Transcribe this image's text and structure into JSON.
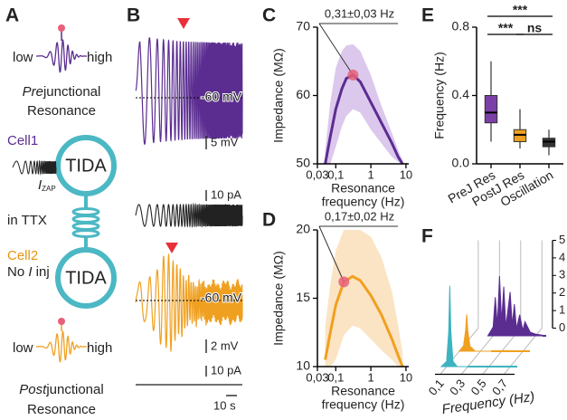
{
  "panel_labels": [
    "A",
    "B",
    "C",
    "D",
    "E",
    "F"
  ],
  "panel_a": {
    "pre_low": "low",
    "pre_high": "high",
    "pre_title": [
      "Pre",
      "junctional"
    ],
    "pre_title2": "Resonance",
    "cell1": "Cell1",
    "tida1": "TIDA",
    "i_zap": [
      "I",
      "ZAP"
    ],
    "ttx": "in TTX",
    "cell2": "Cell2",
    "no_inj": [
      "No ",
      "I",
      " inj"
    ],
    "tida2": "TIDA",
    "post_low": "low",
    "post_high": "high",
    "post_title": [
      "Post",
      "junctional"
    ],
    "post_title2": "Resonance"
  },
  "panel_b": {
    "rest1": "-60 mV",
    "scale_v1": "5 mV",
    "scale_i1": "10 pA",
    "rest2": "-60 mV",
    "scale_v2": "2 mV",
    "scale_i2": "10 pA",
    "scale_t": "10 s"
  },
  "chart_data": [
    {
      "type": "line",
      "ylabel": "Impedance (MΩ)",
      "xlabel": [
        "Resonance",
        "frequency (Hz)"
      ],
      "xscale": "log",
      "xlim": [
        0.03,
        12
      ],
      "ylim": [
        50,
        70
      ],
      "xticks": [
        {
          "value": 0.03,
          "label": "0,03"
        },
        {
          "value": 0.1,
          "label": "0,1"
        },
        1,
        10
      ],
      "yticks": [
        50,
        60,
        70
      ],
      "x": [
        0.05,
        0.07,
        0.1,
        0.15,
        0.2,
        0.31,
        0.5,
        1,
        2,
        4,
        6,
        8
      ],
      "values": [
        50,
        54,
        58,
        61,
        62.5,
        63,
        62,
        59,
        56,
        53,
        51,
        50
      ],
      "upper": [
        52,
        59,
        64,
        66.5,
        67.3,
        67.5,
        66.5,
        63,
        58.5,
        54.5,
        52,
        50.5
      ],
      "lower": [
        50,
        50,
        52.5,
        55.5,
        57,
        58,
        57.5,
        55,
        53,
        51,
        50.3,
        50
      ],
      "color": "#5b2d91",
      "band_color": "#dcc8ec",
      "annotation": "0,31±0,03 Hz",
      "peak": {
        "x": 0.31,
        "y": 63
      },
      "peak_color": "#e8607a"
    },
    {
      "type": "line",
      "ylabel": "Impedance (MΩ)",
      "xlabel": [
        "Resonance",
        "frequency (Hz)"
      ],
      "xscale": "log",
      "xlim": [
        0.03,
        12
      ],
      "ylim": [
        10,
        20
      ],
      "xticks": [
        {
          "value": 0.03,
          "label": "0,03"
        },
        {
          "value": 0.1,
          "label": "0,1"
        },
        1,
        10
      ],
      "yticks": [
        10,
        15,
        20
      ],
      "x": [
        0.05,
        0.07,
        0.1,
        0.17,
        0.3,
        0.5,
        1,
        2,
        4,
        6,
        8
      ],
      "values": [
        10.5,
        12.5,
        14.5,
        16.2,
        16.6,
        16.3,
        15.2,
        13.8,
        12,
        10.8,
        10
      ],
      "upper": [
        13,
        16,
        18.5,
        20,
        20,
        20,
        19.5,
        18,
        15.5,
        13,
        11
      ],
      "lower": [
        10,
        10,
        10.5,
        12.3,
        13,
        12.8,
        12,
        11.2,
        10.5,
        10,
        10
      ],
      "color": "#f0a020",
      "band_color": "#fbe4c4",
      "annotation": "0,17±0,02 Hz",
      "peak": {
        "x": 0.17,
        "y": 16.2
      },
      "peak_color": "#e8607a"
    },
    {
      "type": "box",
      "ylabel": "Frequency (Hz)",
      "categories": [
        "PreJ Res",
        "PostJ Res",
        "Oscillation"
      ],
      "ylim": [
        0,
        0.8
      ],
      "yticks": [
        {
          "value": 0,
          "label": "0.0"
        },
        0.4,
        0.8
      ],
      "boxes": [
        {
          "whislo": 0.13,
          "q1": 0.24,
          "med": 0.3,
          "q3": 0.4,
          "whishi": 0.6
        },
        {
          "whislo": 0.09,
          "q1": 0.13,
          "med": 0.17,
          "q3": 0.2,
          "whishi": 0.32
        },
        {
          "whislo": 0.05,
          "q1": 0.1,
          "med": 0.13,
          "q3": 0.15,
          "whishi": 0.2
        }
      ],
      "colors": [
        "#7b3fa8",
        "#f0a020",
        "#333333"
      ],
      "significance": [
        "***",
        "***",
        "ns"
      ]
    },
    {
      "type": "waterfall",
      "xlabel": "Frequency (Hz)",
      "xlim": [
        0.05,
        0.8
      ],
      "xticks": [
        {
          "value": 0.1,
          "label": "0,1"
        },
        {
          "value": 0.3,
          "label": "0,3"
        },
        {
          "value": 0.5,
          "label": "0,5"
        },
        {
          "value": 0.7,
          "label": "0,7"
        }
      ],
      "zlim": [
        0,
        5
      ],
      "zticks": [
        0,
        1,
        2,
        3,
        4,
        5
      ],
      "series": [
        {
          "color": "#3cb4c0",
          "x": [
            0.05,
            0.1,
            0.12,
            0.13,
            0.14,
            0.16,
            0.2,
            0.3
          ],
          "values": [
            0,
            0.3,
            2,
            4.6,
            2,
            0.3,
            0,
            0
          ]
        },
        {
          "color": "#f0a020",
          "x": [
            0.1,
            0.14,
            0.16,
            0.17,
            0.18,
            0.2,
            0.25,
            0.4
          ],
          "values": [
            0,
            0.3,
            1.2,
            2.1,
            1.2,
            0.3,
            0,
            0
          ]
        },
        {
          "color": "#5b2d91",
          "x": [
            0.25,
            0.3,
            0.32,
            0.34,
            0.36,
            0.38,
            0.4,
            0.42,
            0.44,
            0.46,
            0.48,
            0.5,
            0.52,
            0.55,
            0.58,
            0.6,
            0.65,
            0.7,
            0.8
          ],
          "values": [
            0,
            0.5,
            2.2,
            0.6,
            3.4,
            0.8,
            2.8,
            0.5,
            1.5,
            2.5,
            0.6,
            1.8,
            0.4,
            1.2,
            0.3,
            0.8,
            0.2,
            0.1,
            0
          ]
        }
      ]
    }
  ]
}
